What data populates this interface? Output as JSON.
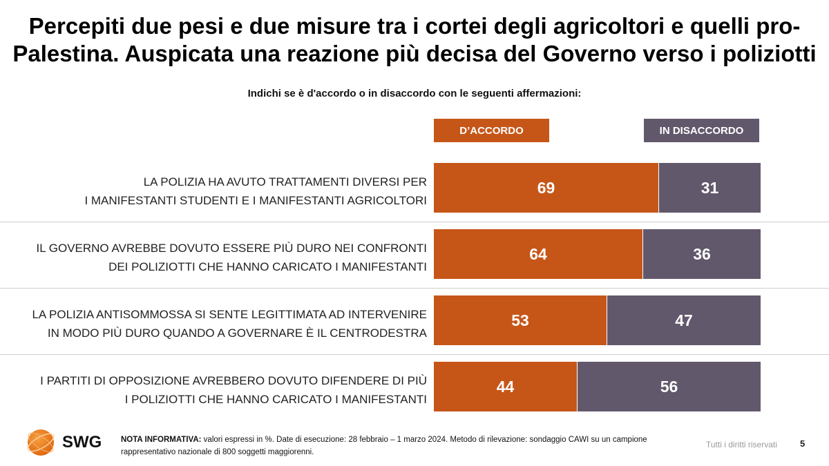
{
  "title": "Percepiti due pesi e due misure tra i cortei degli agricoltori e quelli pro-Palestina. Auspicata una reazione più decisa del Governo verso i poliziotti",
  "subtitle": "Indichi se è d'accordo o in disaccordo con le seguenti affermazioni:",
  "colors": {
    "agree": "#c65618",
    "disagree": "#62586c"
  },
  "chart_data": {
    "type": "bar",
    "orientation": "horizontal",
    "stacked": true,
    "unit": "%",
    "legend": [
      "D’ACCORDO",
      "IN DISACCORDO"
    ],
    "legend_position": "top",
    "categories": [
      [
        "LA POLIZIA HA AVUTO TRATTAMENTI DIVERSI PER",
        "I MANIFESTANTI STUDENTI E I MANIFESTANTI AGRICOLTORI"
      ],
      [
        "IL GOVERNO AVREBBE DOVUTO ESSERE PIÙ DURO NEI CONFRONTI",
        "DEI POLIZIOTTI CHE HANNO CARICATO I MANIFESTANTI"
      ],
      [
        "LA POLIZIA ANTISOMMOSSA SI SENTE LEGITTIMATA AD INTERVENIRE",
        "IN MODO PIÙ DURO QUANDO A GOVERNARE È IL CENTRODESTRA"
      ],
      [
        "I PARTITI DI OPPOSIZIONE AVREBBERO DOVUTO DIFENDERE DI PIÙ",
        "I POLIZIOTTI CHE HANNO CARICATO I MANIFESTANTI"
      ]
    ],
    "series": [
      {
        "name": "D’ACCORDO",
        "values": [
          69,
          64,
          53,
          44
        ]
      },
      {
        "name": "IN DISACCORDO",
        "values": [
          31,
          36,
          47,
          56
        ]
      }
    ],
    "xlim": [
      0,
      100
    ]
  },
  "footer": {
    "logo": "SWG",
    "note_label": "NOTA INFORMATIVA:",
    "note_text": " valori espressi in %. Date di esecuzione: 28 febbraio – 1 marzo 2024. Metodo di rilevazione: sondaggio CAWI su un campione rappresentativo nazionale di 800 soggetti maggiorenni.",
    "rights": "Tutti i diritti riservati",
    "page_number": "5"
  }
}
